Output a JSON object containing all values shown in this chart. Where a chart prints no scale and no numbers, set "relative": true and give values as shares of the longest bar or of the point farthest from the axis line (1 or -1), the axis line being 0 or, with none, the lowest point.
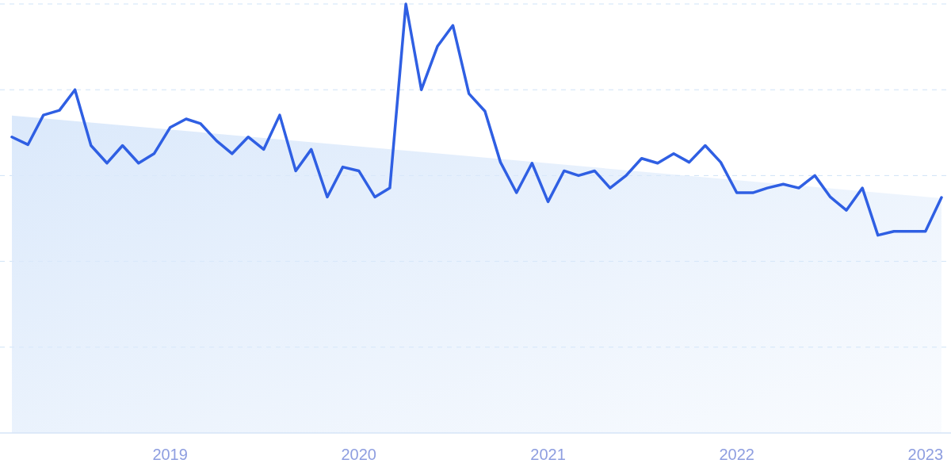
{
  "chart_data": {
    "type": "line",
    "relative": true,
    "grid": "y",
    "xlim": [
      "2018-03",
      "2023-02"
    ],
    "xticks": [
      "2019",
      "2020",
      "2021",
      "2022",
      "2023"
    ],
    "series": [
      {
        "type": "area",
        "color": "#dbe9fb",
        "x": [
          "2018-03",
          "2023-02"
        ],
        "values": [
          0.74,
          0.547
        ]
      },
      {
        "color": "#2f5fe3",
        "x": [
          "2018-03",
          "2018-04",
          "2018-05",
          "2018-06",
          "2018-07",
          "2018-08",
          "2018-09",
          "2018-10",
          "2018-11",
          "2018-12",
          "2019-01",
          "2019-02",
          "2019-03",
          "2019-04",
          "2019-05",
          "2019-06",
          "2019-07",
          "2019-08",
          "2019-09",
          "2019-10",
          "2019-11",
          "2019-12",
          "2020-01",
          "2020-02",
          "2020-03",
          "2020-04",
          "2020-05",
          "2020-06",
          "2020-07",
          "2020-08",
          "2020-09",
          "2020-10",
          "2020-11",
          "2020-12",
          "2021-01",
          "2021-02",
          "2021-03",
          "2021-04",
          "2021-05",
          "2021-06",
          "2021-07",
          "2021-08",
          "2021-09",
          "2021-10",
          "2021-11",
          "2021-12",
          "2022-01",
          "2022-02",
          "2022-03",
          "2022-04",
          "2022-05",
          "2022-06",
          "2022-07",
          "2022-08",
          "2022-09",
          "2022-10",
          "2022-11",
          "2022-12",
          "2023-01",
          "2023-02"
        ],
        "values": [
          0.69,
          0.672,
          0.741,
          0.752,
          0.8,
          0.67,
          0.629,
          0.67,
          0.629,
          0.651,
          0.712,
          0.732,
          0.721,
          0.681,
          0.651,
          0.69,
          0.661,
          0.741,
          0.611,
          0.661,
          0.55,
          0.62,
          0.611,
          0.55,
          0.571,
          1,
          0.8,
          0.901,
          0.95,
          0.791,
          0.75,
          0.631,
          0.56,
          0.629,
          0.539,
          0.611,
          0.6,
          0.611,
          0.571,
          0.6,
          0.64,
          0.629,
          0.651,
          0.631,
          0.67,
          0.631,
          0.56,
          0.56,
          0.571,
          0.58,
          0.571,
          0.6,
          0.55,
          0.519,
          0.571,
          0.461,
          0.47,
          0.47,
          0.47,
          0.549
        ]
      }
    ]
  }
}
